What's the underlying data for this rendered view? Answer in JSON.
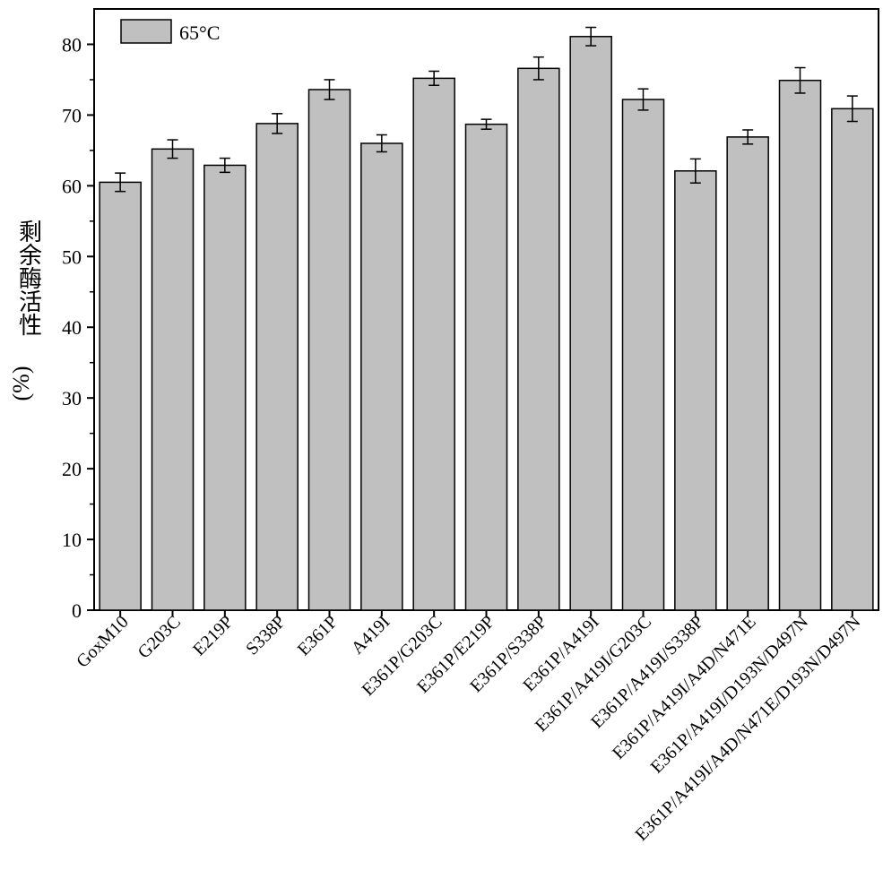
{
  "chart_data": {
    "type": "bar",
    "title": "",
    "xlabel": "",
    "ylabel": "剩余酶活性",
    "ylabel_unit": "(%)",
    "ylim": [
      0,
      85
    ],
    "yticks": [
      0,
      10,
      20,
      30,
      40,
      50,
      60,
      70,
      80
    ],
    "legend_position": "top-left",
    "grid": false,
    "bar_color": "#c0c0c0",
    "series": [
      {
        "name": "65°C",
        "values": [
          60.5,
          65.2,
          62.9,
          68.8,
          73.6,
          66.0,
          75.2,
          68.7,
          76.6,
          81.1,
          72.2,
          62.1,
          66.9,
          74.9,
          70.9
        ],
        "errors": [
          1.3,
          1.3,
          1.0,
          1.4,
          1.4,
          1.2,
          1.0,
          0.7,
          1.6,
          1.3,
          1.5,
          1.7,
          1.0,
          1.8,
          1.8
        ]
      }
    ],
    "categories": [
      "GoxM10",
      "G203C",
      "E219P",
      "S338P",
      "E361P",
      "A419I",
      "E361P/G203C",
      "E361P/E219P",
      "E361P/S338P",
      "E361P/A419I",
      "E361P/A419I/G203C",
      "E361P/A419I/S338P",
      "E361P/A419I/A4D/N471E",
      "E361P/A419I/D193N/D497N",
      "E361P/A419I/A4D/N471E/D193N/D497N"
    ]
  }
}
